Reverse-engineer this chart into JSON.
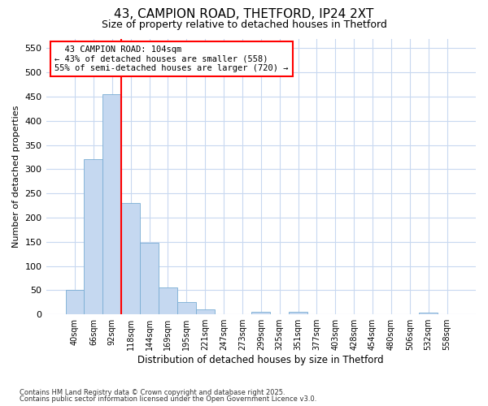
{
  "title_line1": "43, CAMPION ROAD, THETFORD, IP24 2XT",
  "title_line2": "Size of property relative to detached houses in Thetford",
  "xlabel": "Distribution of detached houses by size in Thetford",
  "ylabel": "Number of detached properties",
  "categories": [
    "40sqm",
    "66sqm",
    "92sqm",
    "118sqm",
    "144sqm",
    "169sqm",
    "195sqm",
    "221sqm",
    "247sqm",
    "273sqm",
    "299sqm",
    "325sqm",
    "351sqm",
    "377sqm",
    "403sqm",
    "428sqm",
    "454sqm",
    "480sqm",
    "506sqm",
    "532sqm",
    "558sqm"
  ],
  "values": [
    50,
    320,
    455,
    230,
    148,
    55,
    25,
    10,
    0,
    0,
    5,
    0,
    5,
    0,
    0,
    0,
    0,
    0,
    0,
    3,
    0
  ],
  "bar_color": "#c5d8f0",
  "bar_edge_color": "#7aadd4",
  "vline_color": "red",
  "vline_index": 2.5,
  "annotation_title": "43 CAMPION ROAD: 104sqm",
  "annotation_line1": "← 43% of detached houses are smaller (558)",
  "annotation_line2": "55% of semi-detached houses are larger (720) →",
  "annotation_box_color": "white",
  "annotation_box_edge": "red",
  "ylim": [
    0,
    570
  ],
  "yticks": [
    0,
    50,
    100,
    150,
    200,
    250,
    300,
    350,
    400,
    450,
    500,
    550
  ],
  "background_color": "#ffffff",
  "grid_color": "#c8d8f0",
  "footnote1": "Contains HM Land Registry data © Crown copyright and database right 2025.",
  "footnote2": "Contains public sector information licensed under the Open Government Licence v3.0."
}
